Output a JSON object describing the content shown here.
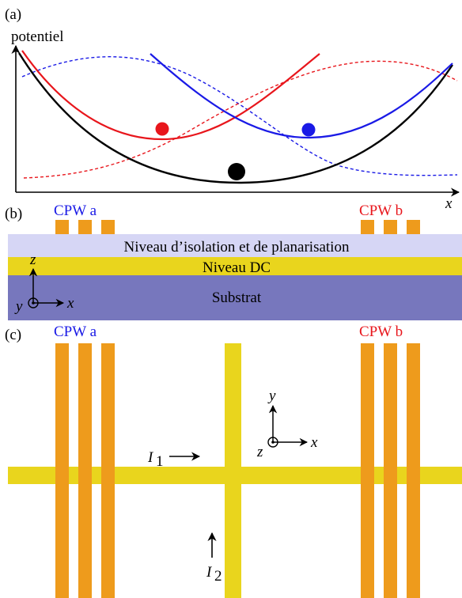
{
  "colors": {
    "black": "#000000",
    "red": "#e8161c",
    "blue": "#1a1ae6",
    "orange": "#ee9b1c",
    "yellow": "#e9d51d",
    "isolation": "#d6d6f5",
    "substrate": "#7777bd"
  },
  "panel_a": {
    "label": "(a)",
    "y_axis_label": "potentiel",
    "x_axis_label": "x"
  },
  "panel_b": {
    "label": "(b)",
    "cpw_a": "CPW a",
    "cpw_b": "CPW b",
    "layer_isolation": "Niveau d’isolation et de planarisation",
    "layer_dc": "Niveau DC",
    "layer_substrate": "Substrat",
    "axis_z": "z",
    "axis_y": "y",
    "axis_x": "x"
  },
  "panel_c": {
    "label": "(c)",
    "cpw_a": "CPW a",
    "cpw_b": "CPW b",
    "axis_y": "y",
    "axis_z": "z",
    "axis_x": "x",
    "current_1": "I",
    "current_1_sub": "1",
    "current_2": "I",
    "current_2_sub": "2"
  }
}
